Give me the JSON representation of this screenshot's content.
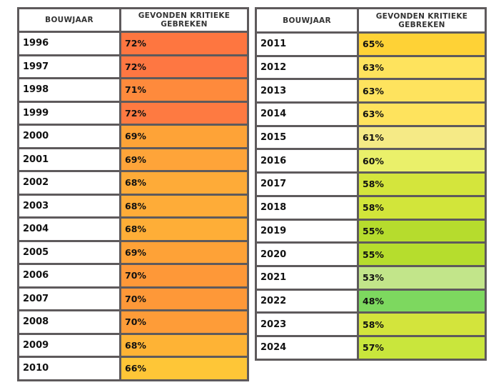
{
  "chart_data": {
    "type": "table",
    "headers": {
      "year": "BOUWJAAR",
      "value": "GEVONDEN KRITIEKE\nGEBREKEN"
    },
    "tables": [
      {
        "rows": [
          {
            "year": "1996",
            "value": "72%",
            "color": "#fe7640"
          },
          {
            "year": "1997",
            "value": "72%",
            "color": "#fe7742"
          },
          {
            "year": "1998",
            "value": "71%",
            "color": "#fe8a3c"
          },
          {
            "year": "1999",
            "value": "72%",
            "color": "#fe7a41"
          },
          {
            "year": "2000",
            "value": "69%",
            "color": "#fea337"
          },
          {
            "year": "2001",
            "value": "69%",
            "color": "#fea439"
          },
          {
            "year": "2002",
            "value": "68%",
            "color": "#feab38"
          },
          {
            "year": "2003",
            "value": "68%",
            "color": "#feac38"
          },
          {
            "year": "2004",
            "value": "68%",
            "color": "#feae37"
          },
          {
            "year": "2005",
            "value": "69%",
            "color": "#fea237"
          },
          {
            "year": "2006",
            "value": "70%",
            "color": "#fe9838"
          },
          {
            "year": "2007",
            "value": "70%",
            "color": "#fe9838"
          },
          {
            "year": "2008",
            "value": "70%",
            "color": "#fe9c38"
          },
          {
            "year": "2009",
            "value": "68%",
            "color": "#feb335"
          },
          {
            "year": "2010",
            "value": "66%",
            "color": "#fec637"
          }
        ]
      },
      {
        "rows": [
          {
            "year": "2011",
            "value": "65%",
            "color": "#fed236"
          },
          {
            "year": "2012",
            "value": "63%",
            "color": "#fee35d"
          },
          {
            "year": "2013",
            "value": "63%",
            "color": "#fee35e"
          },
          {
            "year": "2014",
            "value": "63%",
            "color": "#fee35d"
          },
          {
            "year": "2015",
            "value": "61%",
            "color": "#f5ea86"
          },
          {
            "year": "2016",
            "value": "60%",
            "color": "#eaf06a"
          },
          {
            "year": "2017",
            "value": "58%",
            "color": "#d4e53c"
          },
          {
            "year": "2018",
            "value": "58%",
            "color": "#d2e53a"
          },
          {
            "year": "2019",
            "value": "55%",
            "color": "#b6dc2d"
          },
          {
            "year": "2020",
            "value": "55%",
            "color": "#b6dd2d"
          },
          {
            "year": "2021",
            "value": "53%",
            "color": "#c2e58a"
          },
          {
            "year": "2022",
            "value": "48%",
            "color": "#7dd85f"
          },
          {
            "year": "2023",
            "value": "58%",
            "color": "#d3e43c"
          },
          {
            "year": "2024",
            "value": "57%",
            "color": "#c9e63c"
          }
        ]
      }
    ]
  }
}
